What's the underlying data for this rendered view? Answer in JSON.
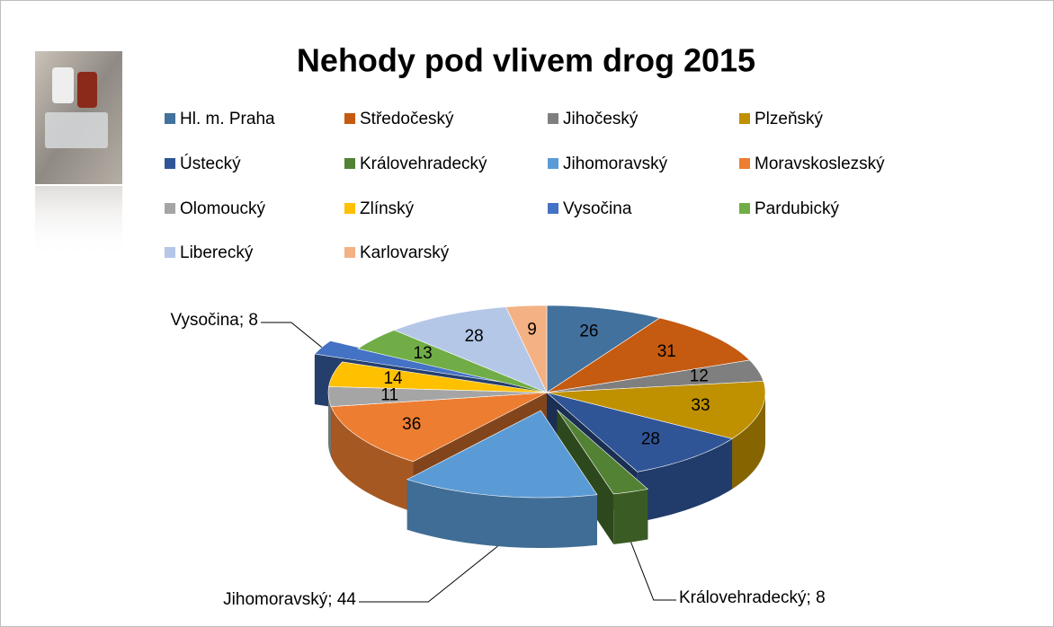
{
  "chart_data": {
    "type": "pie3d",
    "title": "Nehody pod vlivem drog 2015",
    "categories": [
      "Hl. m. Praha",
      "Středočeský",
      "Jihočeský",
      "Plzeňský",
      "Ústecký",
      "Královehradecký",
      "Jihomoravský",
      "Moravskoslezský",
      "Olomoucký",
      "Zlínský",
      "Vysočina",
      "Pardubický",
      "Liberecký",
      "Karlovarský"
    ],
    "values": [
      26,
      31,
      12,
      33,
      28,
      8,
      44,
      36,
      11,
      14,
      8,
      13,
      28,
      9
    ],
    "value_labels": [
      "26",
      "31",
      "12",
      "33",
      "28",
      "Královehradecký; 8",
      "Jihomoravský; 44",
      "36",
      "11",
      "14",
      "Vysočina; 8",
      "13",
      "28",
      "9"
    ],
    "colors": [
      "#41719c",
      "#c55a11",
      "#7f7f7f",
      "#bf9000",
      "#2f5597",
      "#548235",
      "#5b9bd5",
      "#ed7d31",
      "#a5a5a5",
      "#ffc000",
      "#4472c4",
      "#70ad47",
      "#b4c7e7",
      "#f4b183"
    ],
    "legend": "top"
  }
}
